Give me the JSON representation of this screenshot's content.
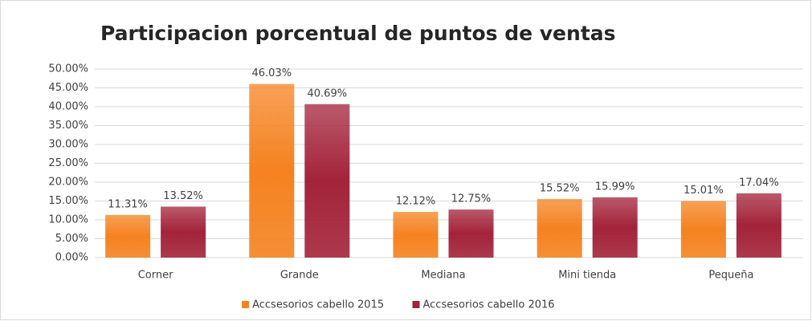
{
  "chart_data": {
    "type": "bar",
    "title": "Participacion porcentual de puntos de ventas",
    "categories": [
      "Corner",
      "Grande",
      "Mediana",
      "Mini tienda",
      "Pequeña"
    ],
    "series": [
      {
        "name": "Accsesorios cabello 2015",
        "color": "#f58220",
        "values": [
          11.31,
          46.03,
          12.12,
          15.52,
          15.01
        ],
        "value_labels": [
          "11.31%",
          "46.03%",
          "12.12%",
          "15.52%",
          "15.01%"
        ]
      },
      {
        "name": "Accsesorios cabello 2016",
        "color": "#a3233a",
        "values": [
          13.52,
          40.69,
          12.75,
          15.99,
          17.04
        ],
        "value_labels": [
          "13.52%",
          "40.69%",
          "12.75%",
          "15.99%",
          "17.04%"
        ]
      }
    ],
    "ylim": [
      0,
      50
    ],
    "yticks": [
      {
        "value": 0,
        "label": "0.00%"
      },
      {
        "value": 5,
        "label": "5.00%"
      },
      {
        "value": 10,
        "label": "10.00%"
      },
      {
        "value": 15,
        "label": "15.00%"
      },
      {
        "value": 20,
        "label": "20.00%"
      },
      {
        "value": 25,
        "label": "25.00%"
      },
      {
        "value": 30,
        "label": "30.00%"
      },
      {
        "value": 35,
        "label": "35.00%"
      },
      {
        "value": 40,
        "label": "40.00%"
      },
      {
        "value": 45,
        "label": "45.00%"
      },
      {
        "value": 50,
        "label": "50.00%"
      }
    ],
    "grid": true,
    "legend": "bottom"
  }
}
